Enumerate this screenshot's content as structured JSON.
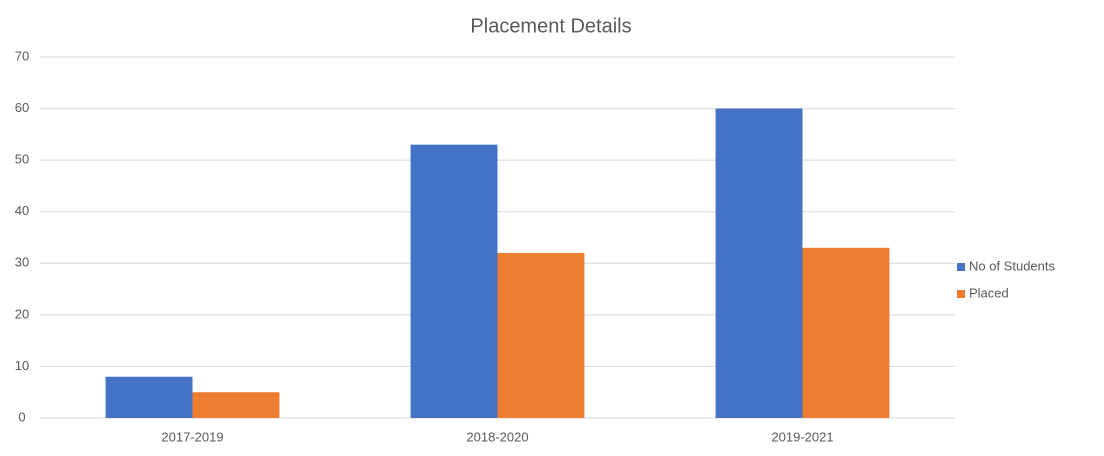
{
  "chart_data": {
    "type": "bar",
    "title": "Placement Details",
    "categories": [
      "2017-2019",
      "2018-2020",
      "2019-2021"
    ],
    "series": [
      {
        "name": "No of Students",
        "color": "#4472c4",
        "values": [
          8,
          53,
          60
        ]
      },
      {
        "name": "Placed",
        "color": "#ed7d31",
        "values": [
          5,
          32,
          33
        ]
      }
    ],
    "ylim": [
      0,
      70
    ],
    "yticks": [
      0,
      10,
      20,
      30,
      40,
      50,
      60,
      70
    ],
    "grid": true,
    "legend": "right"
  }
}
